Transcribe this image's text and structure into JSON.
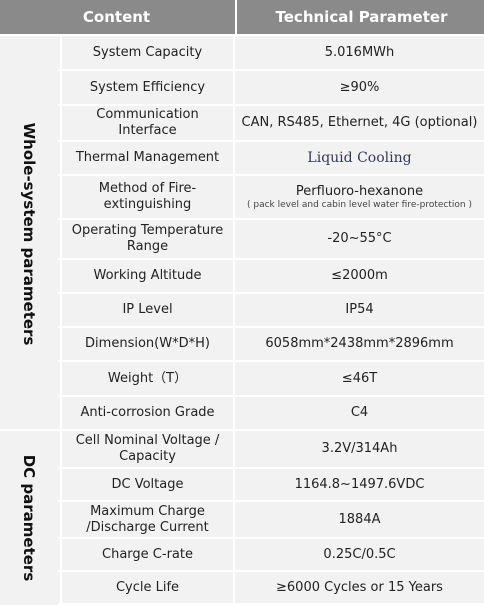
{
  "header": {
    "content": "Content",
    "parameter": "Technical Parameter"
  },
  "groups": {
    "whole": "Whole-system parameters",
    "dc": "DC parameters"
  },
  "rows": [
    {
      "name": "System Capacity",
      "value": "5.016MWh"
    },
    {
      "name": "System Efficiency",
      "value": "≥90%"
    },
    {
      "name": "Communication Interface",
      "value": "CAN, RS485, Ethernet, 4G (optional)"
    },
    {
      "name": "Thermal Management",
      "value": "Liquid Cooling"
    },
    {
      "name": "Method of Fire-extinguishing",
      "value": "Perfluoro-hexanone",
      "value_note": "( pack level and cabin level water fire-protection )"
    },
    {
      "name": "Operating Temperature Range",
      "value": "-20~55°C"
    },
    {
      "name": "Working Altitude",
      "value": "≤2000m"
    },
    {
      "name": "IP Level",
      "value": "IP54"
    },
    {
      "name": "Dimension(W*D*H)",
      "value": "6058mm*2438mm*2896mm"
    },
    {
      "name": "Weight（T）",
      "value": "≤46T"
    },
    {
      "name": "Anti-corrosion Grade",
      "value": "C4"
    },
    {
      "name": "Cell Nominal Voltage / Capacity",
      "value": "3.2V/314Ah"
    },
    {
      "name": "DC Voltage",
      "value": "1164.8~1497.6VDC"
    },
    {
      "name": "Maximum Charge /Discharge Current",
      "value": "1884A"
    },
    {
      "name": "Charge C-rate",
      "value": "0.25C/0.5C"
    },
    {
      "name": "Cycle Life",
      "value": "≥6000 Cycles or 15 Years"
    }
  ]
}
